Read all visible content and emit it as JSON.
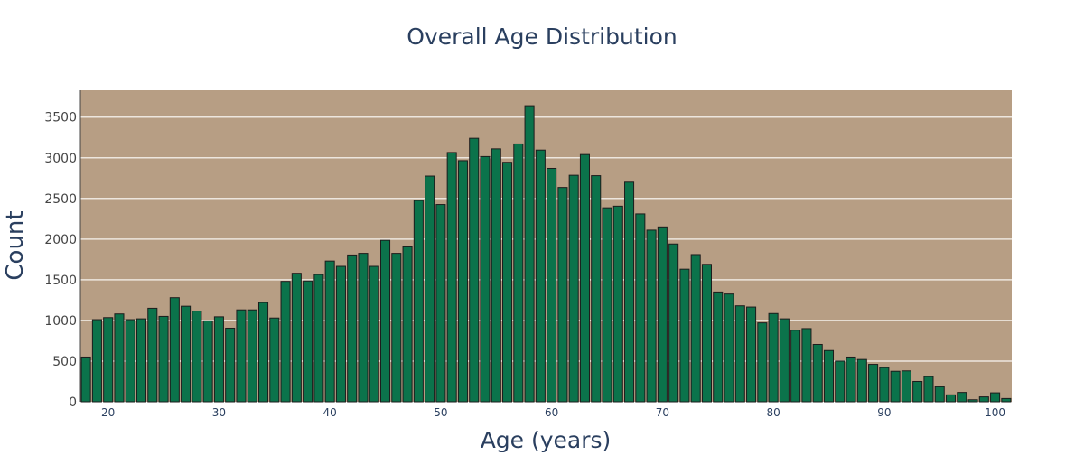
{
  "chart_data": {
    "type": "bar",
    "title": "Overall Age Distribution",
    "xlabel": "Age (years)",
    "ylabel": "Count",
    "x": [
      18,
      19,
      20,
      21,
      22,
      23,
      24,
      25,
      26,
      27,
      28,
      29,
      30,
      31,
      32,
      33,
      34,
      35,
      36,
      37,
      38,
      39,
      40,
      41,
      42,
      43,
      44,
      45,
      46,
      47,
      48,
      49,
      50,
      51,
      52,
      53,
      54,
      55,
      56,
      57,
      58,
      59,
      60,
      61,
      62,
      63,
      64,
      65,
      66,
      67,
      68,
      69,
      70,
      71,
      72,
      73,
      74,
      75,
      76,
      77,
      78,
      79,
      80,
      81,
      82,
      83,
      84,
      85,
      86,
      87,
      88,
      89,
      90,
      91,
      92,
      93,
      94,
      95,
      96,
      97,
      98,
      99,
      100,
      101
    ],
    "values": [
      550,
      1010,
      1035,
      1080,
      1010,
      1020,
      1150,
      1050,
      1280,
      1175,
      1115,
      995,
      1045,
      905,
      1130,
      1130,
      1220,
      1030,
      1480,
      1580,
      1485,
      1565,
      1730,
      1665,
      1805,
      1825,
      1665,
      1985,
      1825,
      1905,
      2475,
      2775,
      2425,
      3065,
      2965,
      3240,
      3015,
      3110,
      2945,
      3170,
      3640,
      3095,
      2870,
      2635,
      2785,
      3040,
      2780,
      2385,
      2405,
      2700,
      2310,
      2110,
      2150,
      1940,
      1630,
      1810,
      1690,
      1350,
      1325,
      1180,
      1165,
      970,
      1085,
      1020,
      880,
      900,
      705,
      630,
      500,
      550,
      520,
      460,
      420,
      375,
      380,
      250,
      310,
      185,
      85,
      115,
      25,
      60,
      110,
      40
    ],
    "ylim": [
      0,
      3830
    ],
    "xlim": [
      17.5,
      101.5
    ],
    "yticks": [
      0,
      500,
      1000,
      1500,
      2000,
      2500,
      3000,
      3500
    ],
    "xticks": [
      20,
      30,
      40,
      50,
      60,
      70,
      80,
      90,
      100
    ],
    "grid": true,
    "colors": {
      "plot_bg": "#b79e84",
      "bar_fill": "#0b734b",
      "bar_stroke": "#1c1c1c",
      "grid": "#ede6de"
    }
  }
}
